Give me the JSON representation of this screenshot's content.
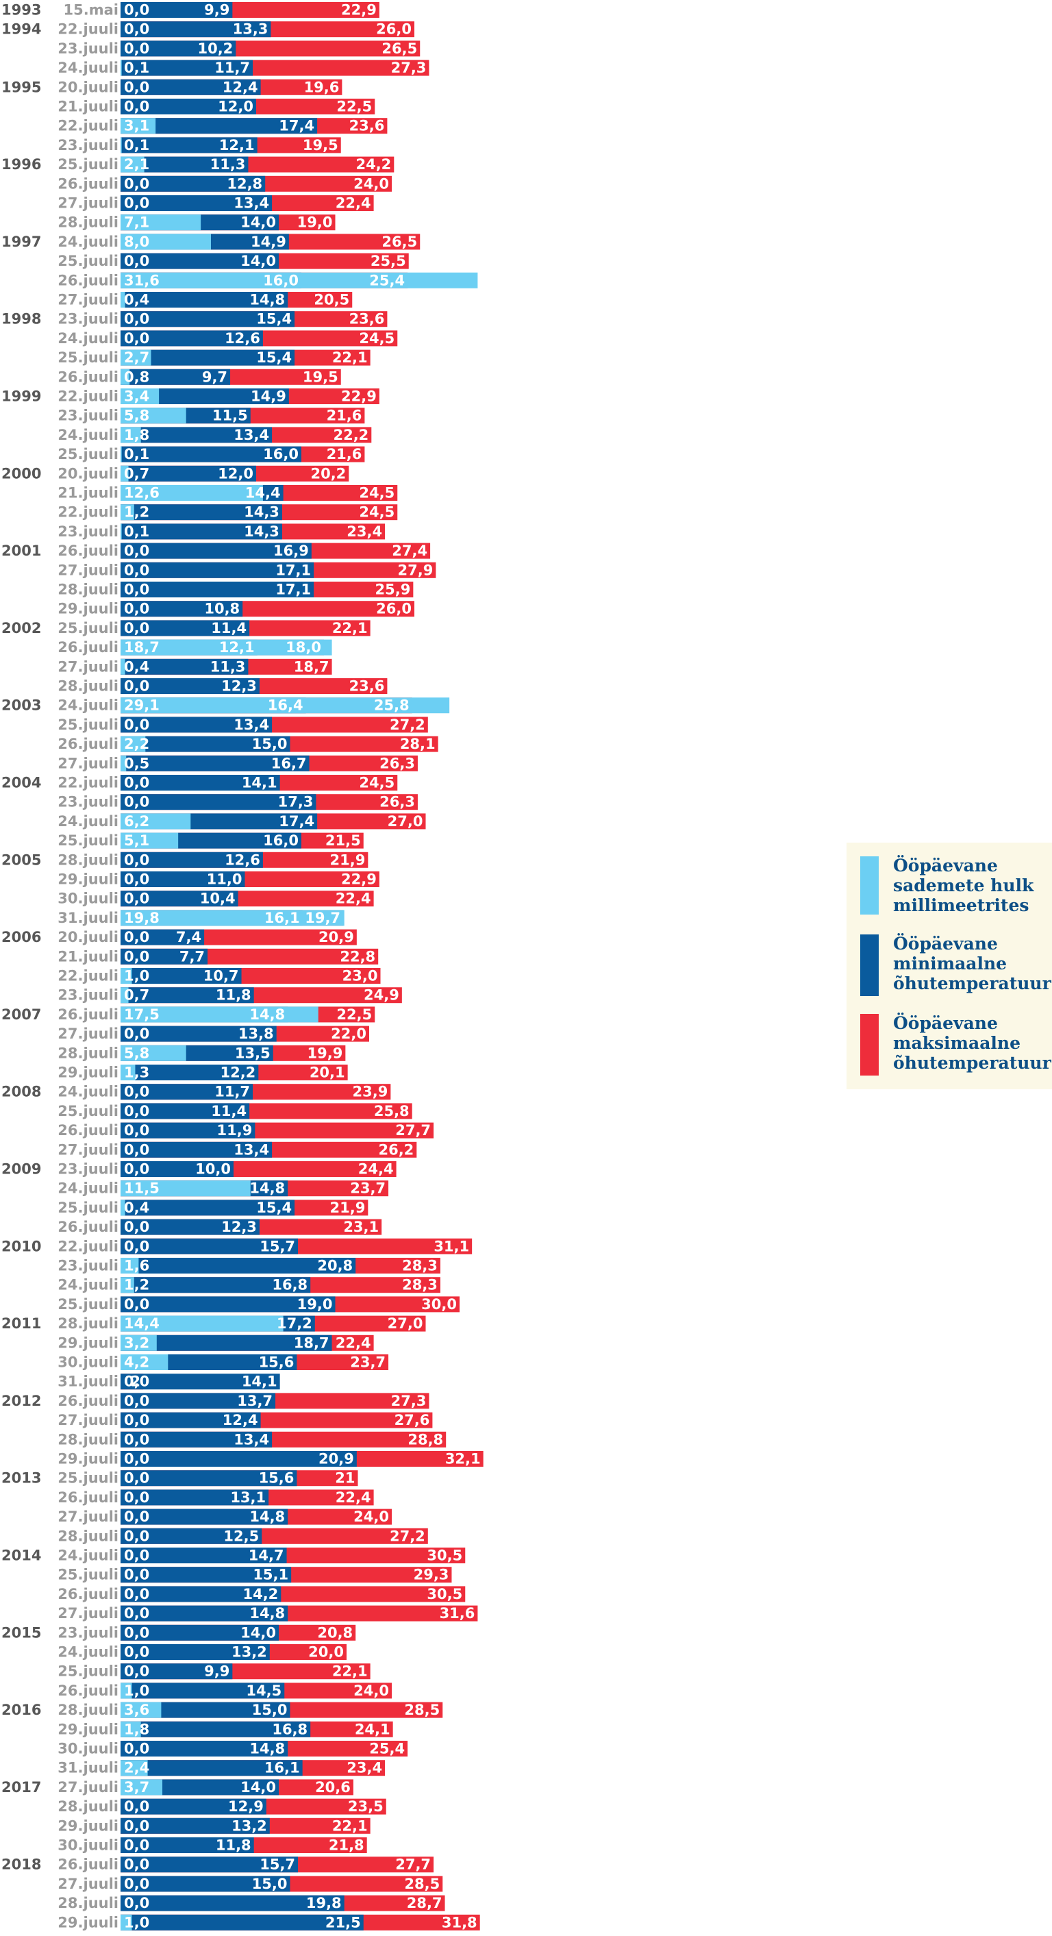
{
  "chart_data": {
    "type": "bar",
    "orientation": "horizontal",
    "stacking": "overlay",
    "title": "",
    "colors": {
      "precipitation": "#6ccff3",
      "min_temp": "#0a5b9d",
      "max_temp": "#ee2d3b",
      "legend_bg": "#fbf8e6"
    },
    "legend": [
      {
        "key": "precipitation",
        "lines": [
          "Ööpäevane",
          "sademete hulk",
          "millimeetrites"
        ]
      },
      {
        "key": "min_temp",
        "lines": [
          "Ööpäevane",
          "minimaalne",
          "õhutemperatuur"
        ]
      },
      {
        "key": "max_temp",
        "lines": [
          "Ööpäevane",
          "maksimaalne",
          "õhutemperatuur"
        ]
      }
    ],
    "legend_position": "right",
    "rows": [
      {
        "year": "1993",
        "date": "15.mai",
        "precip": "0,0",
        "min": "9,9",
        "max": "22,9"
      },
      {
        "year": "1994",
        "date": "22.juuli",
        "precip": "0,0",
        "min": "13,3",
        "max": "26,0"
      },
      {
        "year": "",
        "date": "23.juuli",
        "precip": "0,0",
        "min": "10,2",
        "max": "26,5"
      },
      {
        "year": "",
        "date": "24.juuli",
        "precip": "0,1",
        "min": "11,7",
        "max": "27,3"
      },
      {
        "year": "1995",
        "date": "20.juuli",
        "precip": "0,0",
        "min": "12,4",
        "max": "19,6"
      },
      {
        "year": "",
        "date": "21.juuli",
        "precip": "0,0",
        "min": "12,0",
        "max": "22,5"
      },
      {
        "year": "",
        "date": "22.juuli",
        "precip": "3,1",
        "min": "17,4",
        "max": "23,6"
      },
      {
        "year": "",
        "date": "23.juuli",
        "precip": "0,1",
        "min": "12,1",
        "max": "19,5"
      },
      {
        "year": "1996",
        "date": "25.juuli",
        "precip": "2,1",
        "min": "11,3",
        "max": "24,2"
      },
      {
        "year": "",
        "date": "26.juuli",
        "precip": "0,0",
        "min": "12,8",
        "max": "24,0"
      },
      {
        "year": "",
        "date": "27.juuli",
        "precip": "0,0",
        "min": "13,4",
        "max": "22,4"
      },
      {
        "year": "",
        "date": "28.juuli",
        "precip": "7,1",
        "min": "14,0",
        "max": "19,0"
      },
      {
        "year": "1997",
        "date": "24.juuli",
        "precip": "8,0",
        "min": "14,9",
        "max": "26,5"
      },
      {
        "year": "",
        "date": "25.juuli",
        "precip": "0,0",
        "min": "14,0",
        "max": "25,5"
      },
      {
        "year": "",
        "date": "26.juuli",
        "precip": "31,6",
        "min": "16,0",
        "max": "25,4"
      },
      {
        "year": "",
        "date": "27.juuli",
        "precip": "0,4",
        "min": "14,8",
        "max": "20,5"
      },
      {
        "year": "1998",
        "date": "23.juuli",
        "precip": "0,0",
        "min": "15,4",
        "max": "23,6"
      },
      {
        "year": "",
        "date": "24.juuli",
        "precip": "0,0",
        "min": "12,6",
        "max": "24,5"
      },
      {
        "year": "",
        "date": "25.juuli",
        "precip": "2,7",
        "min": "15,4",
        "max": "22,1"
      },
      {
        "year": "",
        "date": "26.juuli",
        "precip": "0,8",
        "min": "9,7",
        "max": "19,5"
      },
      {
        "year": "1999",
        "date": "22.juuli",
        "precip": "3,4",
        "min": "14,9",
        "max": "22,9"
      },
      {
        "year": "",
        "date": "23.juuli",
        "precip": "5,8",
        "min": "11,5",
        "max": "21,6"
      },
      {
        "year": "",
        "date": "24.juuli",
        "precip": "1,8",
        "min": "13,4",
        "max": "22,2"
      },
      {
        "year": "",
        "date": "25.juuli",
        "precip": "0,1",
        "min": "16,0",
        "max": "21,6"
      },
      {
        "year": "2000",
        "date": "20.juuli",
        "precip": "0,7",
        "min": "12,0",
        "max": "20,2"
      },
      {
        "year": "",
        "date": "21.juuli",
        "precip": "12,6",
        "min": "14,4",
        "max": "24,5"
      },
      {
        "year": "",
        "date": "22.juuli",
        "precip": "1,2",
        "min": "14,3",
        "max": "24,5"
      },
      {
        "year": "",
        "date": "23.juuli",
        "precip": "0,1",
        "min": "14,3",
        "max": "23,4"
      },
      {
        "year": "2001",
        "date": "26.juuli",
        "precip": "0,0",
        "min": "16,9",
        "max": "27,4"
      },
      {
        "year": "",
        "date": "27.juuli",
        "precip": "0,0",
        "min": "17,1",
        "max": "27,9"
      },
      {
        "year": "",
        "date": "28.juuli",
        "precip": "0,0",
        "min": "17,1",
        "max": "25,9"
      },
      {
        "year": "",
        "date": "29.juuli",
        "precip": "0,0",
        "min": "10,8",
        "max": "26,0"
      },
      {
        "year": "2002",
        "date": "25.juuli",
        "precip": "0,0",
        "min": "11,4",
        "max": "22,1"
      },
      {
        "year": "",
        "date": "26.juuli",
        "precip": "18,7",
        "min": "12,1",
        "max": "18,0"
      },
      {
        "year": "",
        "date": "27.juuli",
        "precip": "0,4",
        "min": "11,3",
        "max": "18,7"
      },
      {
        "year": "",
        "date": "28.juuli",
        "precip": "0,0",
        "min": "12,3",
        "max": "23,6"
      },
      {
        "year": "2003",
        "date": "24.juuli",
        "precip": "29,1",
        "min": "16,4",
        "max": "25,8"
      },
      {
        "year": "",
        "date": "25.juuli",
        "precip": "0,0",
        "min": "13,4",
        "max": "27,2"
      },
      {
        "year": "",
        "date": "26.juuli",
        "precip": "2,2",
        "min": "15,0",
        "max": "28,1"
      },
      {
        "year": "",
        "date": "27.juuli",
        "precip": "0,5",
        "min": "16,7",
        "max": "26,3"
      },
      {
        "year": "2004",
        "date": "22.juuli",
        "precip": "0,0",
        "min": "14,1",
        "max": "24,5"
      },
      {
        "year": "",
        "date": "23.juuli",
        "precip": "0,0",
        "min": "17,3",
        "max": "26,3"
      },
      {
        "year": "",
        "date": "24.juuli",
        "precip": "6,2",
        "min": "17,4",
        "max": "27,0"
      },
      {
        "year": "",
        "date": "25.juuli",
        "precip": "5,1",
        "min": "16,0",
        "max": "21,5"
      },
      {
        "year": "2005",
        "date": "28.juuli",
        "precip": "0,0",
        "min": "12,6",
        "max": "21,9"
      },
      {
        "year": "",
        "date": "29.juuli",
        "precip": "0,0",
        "min": "11,0",
        "max": "22,9"
      },
      {
        "year": "",
        "date": "30.juuli",
        "precip": "0,0",
        "min": "10,4",
        "max": "22,4"
      },
      {
        "year": "",
        "date": "31.juuli",
        "precip": "19,8",
        "min": "16,1",
        "max": "19,7"
      },
      {
        "year": "2006",
        "date": "20.juuli",
        "precip": "0,0",
        "min": "7,4",
        "max": "20,9"
      },
      {
        "year": "",
        "date": "21.juuli",
        "precip": "0,0",
        "min": "7,7",
        "max": "22,8"
      },
      {
        "year": "",
        "date": "22.juuli",
        "precip": "1,0",
        "min": "10,7",
        "max": "23,0"
      },
      {
        "year": "",
        "date": "23.juuli",
        "precip": "0,7",
        "min": "11,8",
        "max": "24,9"
      },
      {
        "year": "2007",
        "date": "26.juuli",
        "precip": "17,5",
        "min": "14,8",
        "max": "22,5"
      },
      {
        "year": "",
        "date": "27.juuli",
        "precip": "0,0",
        "min": "13,8",
        "max": "22,0"
      },
      {
        "year": "",
        "date": "28.juuli",
        "precip": "5,8",
        "min": "13,5",
        "max": "19,9"
      },
      {
        "year": "",
        "date": "29.juuli",
        "precip": "1,3",
        "min": "12,2",
        "max": "20,1"
      },
      {
        "year": "2008",
        "date": "24.juuli",
        "precip": "0,0",
        "min": "11,7",
        "max": "23,9"
      },
      {
        "year": "",
        "date": "25.juuli",
        "precip": "0,0",
        "min": "11,4",
        "max": "25,8"
      },
      {
        "year": "",
        "date": "26.juuli",
        "precip": "0,0",
        "min": "11,9",
        "max": "27,7"
      },
      {
        "year": "",
        "date": "27.juuli",
        "precip": "0,0",
        "min": "13,4",
        "max": "26,2"
      },
      {
        "year": "2009",
        "date": "23.juuli",
        "precip": "0,0",
        "min": "10,0",
        "max": "24,4"
      },
      {
        "year": "",
        "date": "24.juuli",
        "precip": "11,5",
        "min": "14,8",
        "max": "23,7"
      },
      {
        "year": "",
        "date": "25.juuli",
        "precip": "0,4",
        "min": "15,4",
        "max": "21,9"
      },
      {
        "year": "",
        "date": "26.juuli",
        "precip": "0,0",
        "min": "12,3",
        "max": "23,1"
      },
      {
        "year": "2010",
        "date": "22.juuli",
        "precip": "0,0",
        "min": "15,7",
        "max": "31,1"
      },
      {
        "year": "",
        "date": "23.juuli",
        "precip": "1,6",
        "min": "20,8",
        "max": "28,3"
      },
      {
        "year": "",
        "date": "24.juuli",
        "precip": "1,2",
        "min": "16,8",
        "max": "28,3"
      },
      {
        "year": "",
        "date": "25.juuli",
        "precip": "0,0",
        "min": "19,0",
        "max": "30,0"
      },
      {
        "year": "2011",
        "date": "28.juuli",
        "precip": "14,4",
        "min": "17,2",
        "max": "27,0"
      },
      {
        "year": "",
        "date": "29.juuli",
        "precip": "3,2",
        "min": "18,7",
        "max": "22,4"
      },
      {
        "year": "",
        "date": "30.juuli",
        "precip": "4,2",
        "min": "15,6",
        "max": "23,7"
      },
      {
        "year": "",
        "date": "31.juuli",
        "precip": "0,0",
        "min": "14,1",
        "max": "2"
      },
      {
        "year": "2012",
        "date": "26.juuli",
        "precip": "0,0",
        "min": "13,7",
        "max": "27,3"
      },
      {
        "year": "",
        "date": "27.juuli",
        "precip": "0,0",
        "min": "12,4",
        "max": "27,6"
      },
      {
        "year": "",
        "date": "28.juuli",
        "precip": "0,0",
        "min": "13,4",
        "max": "28,8"
      },
      {
        "year": "",
        "date": "29.juuli",
        "precip": "0,0",
        "min": "20,9",
        "max": "32,1"
      },
      {
        "year": "2013",
        "date": "25.juuli",
        "precip": "0,0",
        "min": "15,6",
        "max": "21"
      },
      {
        "year": "",
        "date": "26.juuli",
        "precip": "0,0",
        "min": "13,1",
        "max": "22,4"
      },
      {
        "year": "",
        "date": "27.juuli",
        "precip": "0,0",
        "min": "14,8",
        "max": "24,0"
      },
      {
        "year": "",
        "date": "28.juuli",
        "precip": "0,0",
        "min": "12,5",
        "max": "27,2"
      },
      {
        "year": "2014",
        "date": "24.juuli",
        "precip": "0,0",
        "min": "14,7",
        "max": "30,5"
      },
      {
        "year": "",
        "date": "25.juuli",
        "precip": "0,0",
        "min": "15,1",
        "max": "29,3"
      },
      {
        "year": "",
        "date": "26.juuli",
        "precip": "0,0",
        "min": "14,2",
        "max": "30,5"
      },
      {
        "year": "",
        "date": "27.juuli",
        "precip": "0,0",
        "min": "14,8",
        "max": "31,6"
      },
      {
        "year": "2015",
        "date": "23.juuli",
        "precip": "0,0",
        "min": "14,0",
        "max": "20,8"
      },
      {
        "year": "",
        "date": "24.juuli",
        "precip": "0,0",
        "min": "13,2",
        "max": "20,0"
      },
      {
        "year": "",
        "date": "25.juuli",
        "precip": "0,0",
        "min": "9,9",
        "max": "22,1"
      },
      {
        "year": "",
        "date": "26.juuli",
        "precip": "1,0",
        "min": "14,5",
        "max": "24,0"
      },
      {
        "year": "2016",
        "date": "28.juuli",
        "precip": "3,6",
        "min": "15,0",
        "max": "28,5"
      },
      {
        "year": "",
        "date": "29.juuli",
        "precip": "1,8",
        "min": "16,8",
        "max": "24,1"
      },
      {
        "year": "",
        "date": "30.juuli",
        "precip": "0,0",
        "min": "14,8",
        "max": "25,4"
      },
      {
        "year": "",
        "date": "31.juuli",
        "precip": "2,4",
        "min": "16,1",
        "max": "23,4"
      },
      {
        "year": "2017",
        "date": "27.juuli",
        "precip": "3,7",
        "min": "14,0",
        "max": "20,6"
      },
      {
        "year": "",
        "date": "28.juuli",
        "precip": "0,0",
        "min": "12,9",
        "max": "23,5"
      },
      {
        "year": "",
        "date": "29.juuli",
        "precip": "0,0",
        "min": "13,2",
        "max": "22,1"
      },
      {
        "year": "",
        "date": "30.juuli",
        "precip": "0,0",
        "min": "11,8",
        "max": "21,8"
      },
      {
        "year": "2018",
        "date": "26.juuli",
        "precip": "0,0",
        "min": "15,7",
        "max": "27,7"
      },
      {
        "year": "",
        "date": "27.juuli",
        "precip": "0,0",
        "min": "15,0",
        "max": "28,5"
      },
      {
        "year": "",
        "date": "28.juuli",
        "precip": "0,0",
        "min": "19,8",
        "max": "28,7"
      },
      {
        "year": "",
        "date": "29.juuli",
        "precip": "1,0",
        "min": "21,5",
        "max": "31,8"
      }
    ]
  }
}
